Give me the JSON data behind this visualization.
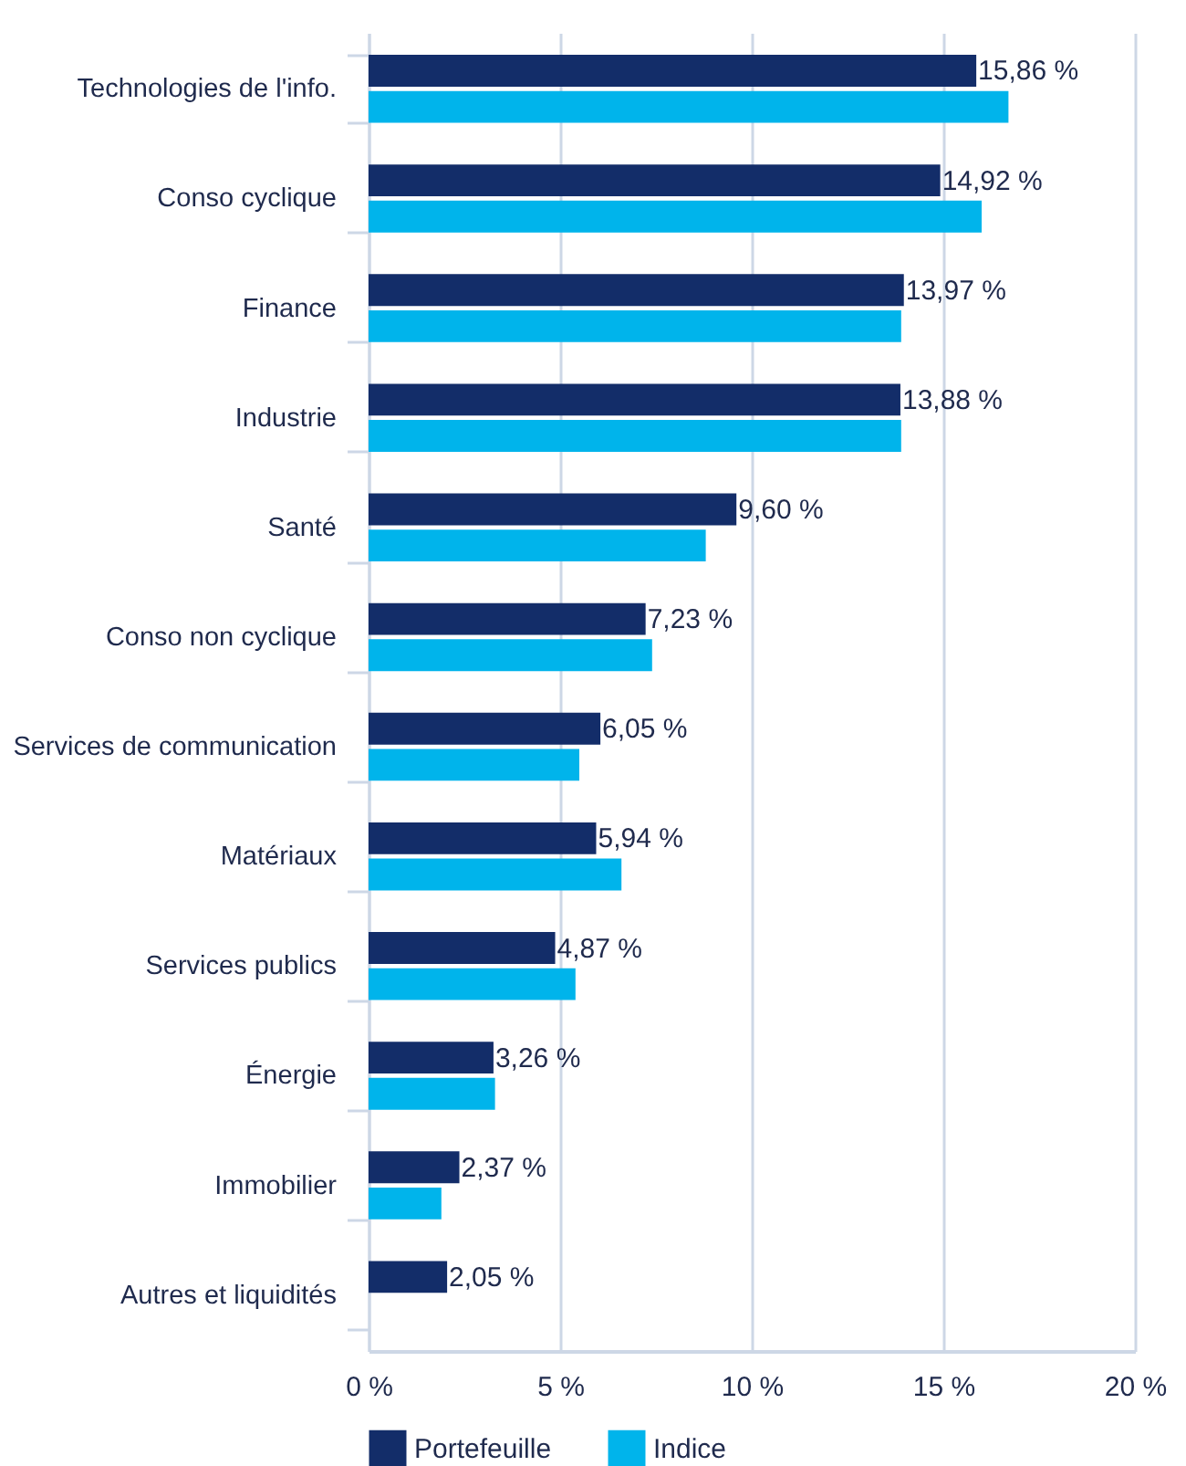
{
  "chart_data": {
    "type": "bar",
    "orientation": "horizontal",
    "categories": [
      "Technologies de l'info.",
      "Conso cyclique",
      "Finance",
      "Industrie",
      "Santé",
      "Conso non cyclique",
      "Services de communication",
      "Matériaux",
      "Services publics",
      "Énergie",
      "Immobilier",
      "Autres et liquidités"
    ],
    "series": [
      {
        "name": "Portefeuille",
        "color": "#132d69",
        "values": [
          15.86,
          14.92,
          13.97,
          13.88,
          9.6,
          7.23,
          6.05,
          5.94,
          4.87,
          3.26,
          2.37,
          2.05
        ],
        "value_labels": [
          "15,86 %",
          "14,92 %",
          "13,97 %",
          "13,88 %",
          "9,60 %",
          "7,23 %",
          "6,05 %",
          "5,94 %",
          "4,87 %",
          "3,26 %",
          "2,37 %",
          "2,05 %"
        ]
      },
      {
        "name": "Indice",
        "color": "#00b4eb",
        "values": [
          16.7,
          16.0,
          13.9,
          13.9,
          8.8,
          7.4,
          5.5,
          6.6,
          5.4,
          3.3,
          1.9,
          null
        ]
      }
    ],
    "xlim": [
      0,
      20
    ],
    "xticks": [
      {
        "value": 0,
        "label": "0 %"
      },
      {
        "value": 5,
        "label": "5 %"
      },
      {
        "value": 10,
        "label": "10 %"
      },
      {
        "value": 15,
        "label": "15 %"
      },
      {
        "value": 20,
        "label": "20 %"
      }
    ],
    "grid": "x",
    "legend": "bottom"
  }
}
